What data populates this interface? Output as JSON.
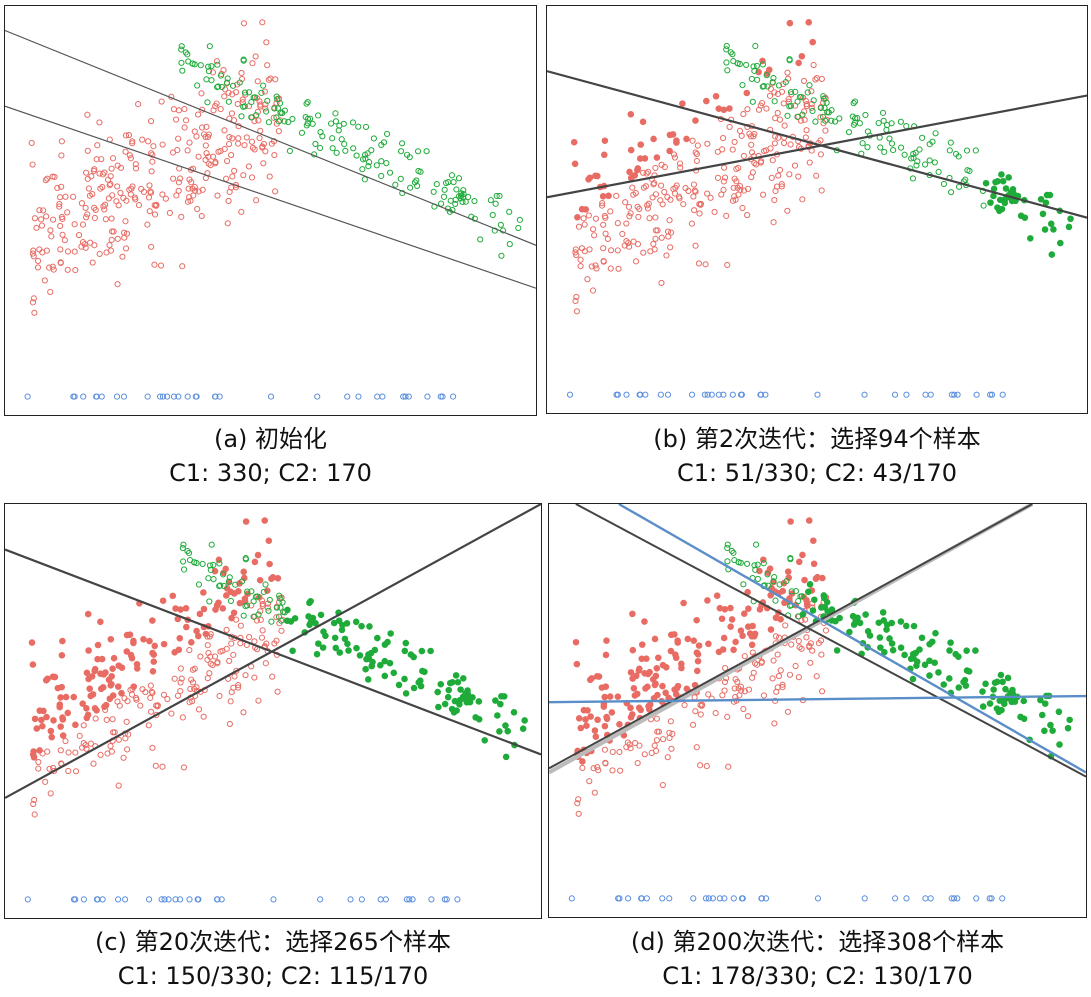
{
  "chart_data": [
    {
      "type": "scatter",
      "caption": "(a) 初始化",
      "subcaption": "C1: 330; C2: 170",
      "colors": {
        "c1": "#e86c64",
        "c2": "#1fab3a",
        "unlabeled": "#5b8fde",
        "line": "#555555"
      },
      "filled": {
        "c1": 0,
        "c2": 0
      },
      "lines": [
        {
          "color": "#555555",
          "width": 1.2,
          "points": [
            [
              0.0,
              0.94
            ],
            [
              1.0,
              0.415
            ]
          ]
        },
        {
          "color": "#555555",
          "width": 1.2,
          "points": [
            [
              0.0,
              0.755
            ],
            [
              1.0,
              0.31
            ]
          ]
        }
      ]
    },
    {
      "type": "scatter",
      "caption": "(b) 第2次迭代：选择94个样本",
      "subcaption": "C1: 51/330; C2: 43/170",
      "colors": {
        "c1": "#e86c64",
        "c2": "#1fab3a",
        "unlabeled": "#5b8fde",
        "line": "#444444"
      },
      "filled": {
        "c1": 51,
        "c2": 43
      },
      "lines": [
        {
          "color": "#444444",
          "width": 2.2,
          "points": [
            [
              0.0,
              0.84
            ],
            [
              1.0,
              0.48
            ]
          ]
        },
        {
          "color": "#444444",
          "width": 2.2,
          "points": [
            [
              0.0,
              0.53
            ],
            [
              1.0,
              0.78
            ]
          ]
        }
      ]
    },
    {
      "type": "scatter",
      "caption": "(c) 第20次迭代：选择265个样本",
      "subcaption": "C1: 150/330; C2: 115/170",
      "colors": {
        "c1": "#e86c64",
        "c2": "#1fab3a",
        "unlabeled": "#5b8fde",
        "line": "#444444"
      },
      "filled": {
        "c1": 150,
        "c2": 115
      },
      "lines": [
        {
          "color": "#444444",
          "width": 2.2,
          "points": [
            [
              0.0,
              0.89
            ],
            [
              1.0,
              0.395
            ]
          ]
        },
        {
          "color": "#444444",
          "width": 2.2,
          "points": [
            [
              0.0,
              0.29
            ],
            [
              1.0,
              1.0
            ]
          ]
        }
      ]
    },
    {
      "type": "scatter",
      "caption": "(d) 第200次迭代：选择308个样本",
      "subcaption": "C1: 178/330; C2: 130/170",
      "colors": {
        "c1": "#e86c64",
        "c2": "#1fab3a",
        "unlabeled": "#5b8fde",
        "line": "#444444"
      },
      "filled": {
        "c1": 178,
        "c2": 130
      },
      "lines": [
        {
          "color": "#bbbbbb",
          "width": 4,
          "points": [
            [
              0.0,
              0.35
            ],
            [
              0.9,
              1.0
            ]
          ]
        },
        {
          "color": "#444444",
          "width": 2,
          "points": [
            [
              0.0,
              0.36
            ],
            [
              0.9,
              1.0
            ]
          ]
        },
        {
          "color": "#444444",
          "width": 2,
          "points": [
            [
              0.05,
              1.0
            ],
            [
              1.0,
              0.34
            ]
          ]
        },
        {
          "color": "#5a8ec8",
          "width": 2.4,
          "points": [
            [
              0.13,
              1.0
            ],
            [
              1.0,
              0.35
            ]
          ]
        },
        {
          "color": "#5a8ec8",
          "width": 2.4,
          "points": [
            [
              0.0,
              0.52
            ],
            [
              1.0,
              0.535
            ]
          ]
        }
      ]
    }
  ]
}
